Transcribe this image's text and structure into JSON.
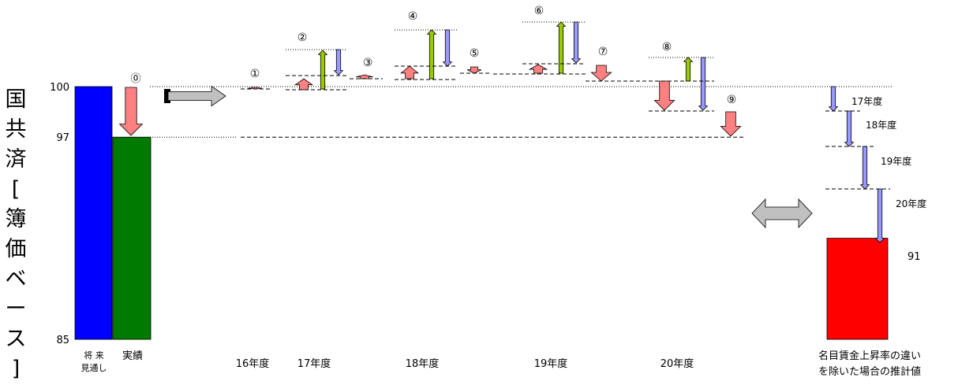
{
  "chart_data": {
    "type": "bar",
    "ylabel": "国共済[簿価ベース]",
    "ylabel_chars": [
      "国",
      "共",
      "済",
      "[",
      "簿",
      "価",
      "ベ",
      "ー",
      "ス",
      "]"
    ],
    "yticks": [
      {
        "label": "100",
        "value": 100
      },
      {
        "label": "97",
        "value": 97
      },
      {
        "label": "85",
        "value": 85
      }
    ],
    "ylim": [
      85,
      100
    ],
    "bars": [
      {
        "label": "将 来\n見通し",
        "value": 100,
        "color": "#0000ff"
      },
      {
        "label": "実績",
        "value": 97,
        "color": "#007a00"
      },
      {
        "label": "名目賃金上昇率の違い\nを除いた場合の推計値",
        "value": 91,
        "value_label": "91",
        "color": "#ff0000"
      }
    ],
    "zero_label": "⓪",
    "year_labels": [
      "16年度",
      "17年度",
      "18年度",
      "19年度",
      "20年度"
    ],
    "change_markers": [
      "①",
      "②",
      "③",
      "④",
      "⑤",
      "⑥",
      "⑦",
      "⑧",
      "⑨"
    ],
    "right_year_labels": [
      "17年度",
      "18年度",
      "19年度",
      "20年度"
    ],
    "colors": {
      "pink": "#ff8080",
      "green": "#99cc00",
      "lavender": "#9999ff",
      "gray": "#c0c0c0"
    }
  }
}
